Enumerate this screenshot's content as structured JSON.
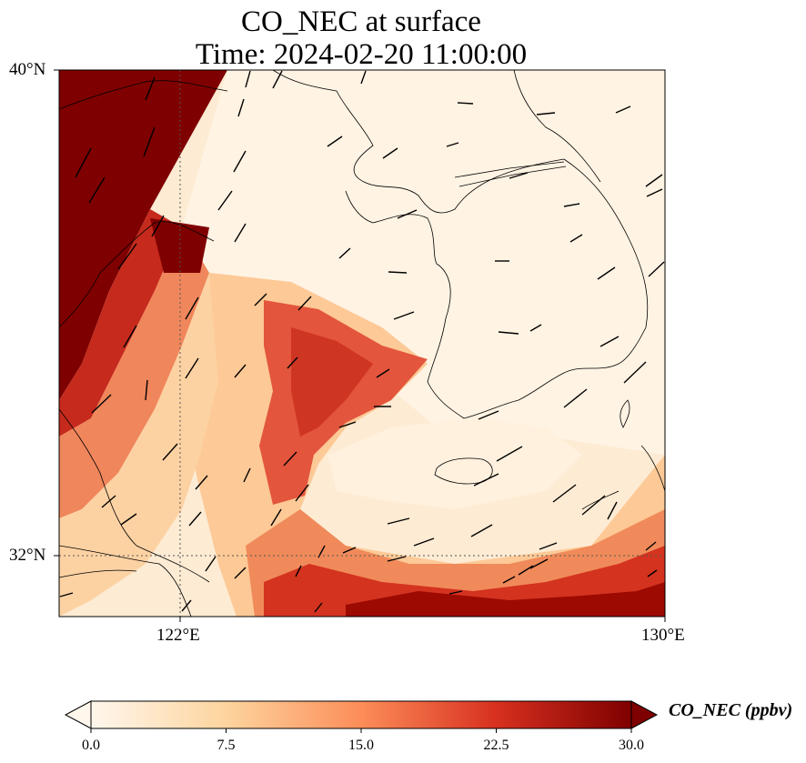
{
  "title_line1": "CO_NEC at surface",
  "title_line2": "Time: 2024-02-20 11:00:00",
  "map": {
    "lon_ticks": [
      "122°E",
      "130°E"
    ],
    "lat_ticks": [
      "40°N",
      "32°N"
    ],
    "lon_range": [
      120,
      130
    ],
    "lat_range": [
      31,
      40.2
    ],
    "gridlines": true,
    "wind_vectors": true
  },
  "colorbar": {
    "label": "CO_NEC (ppbv)",
    "colormap": "OrRd",
    "ticks": [
      "0.0",
      "7.5",
      "15.0",
      "22.5",
      "30.0"
    ],
    "range": [
      0,
      30
    ],
    "extend": "both"
  }
}
